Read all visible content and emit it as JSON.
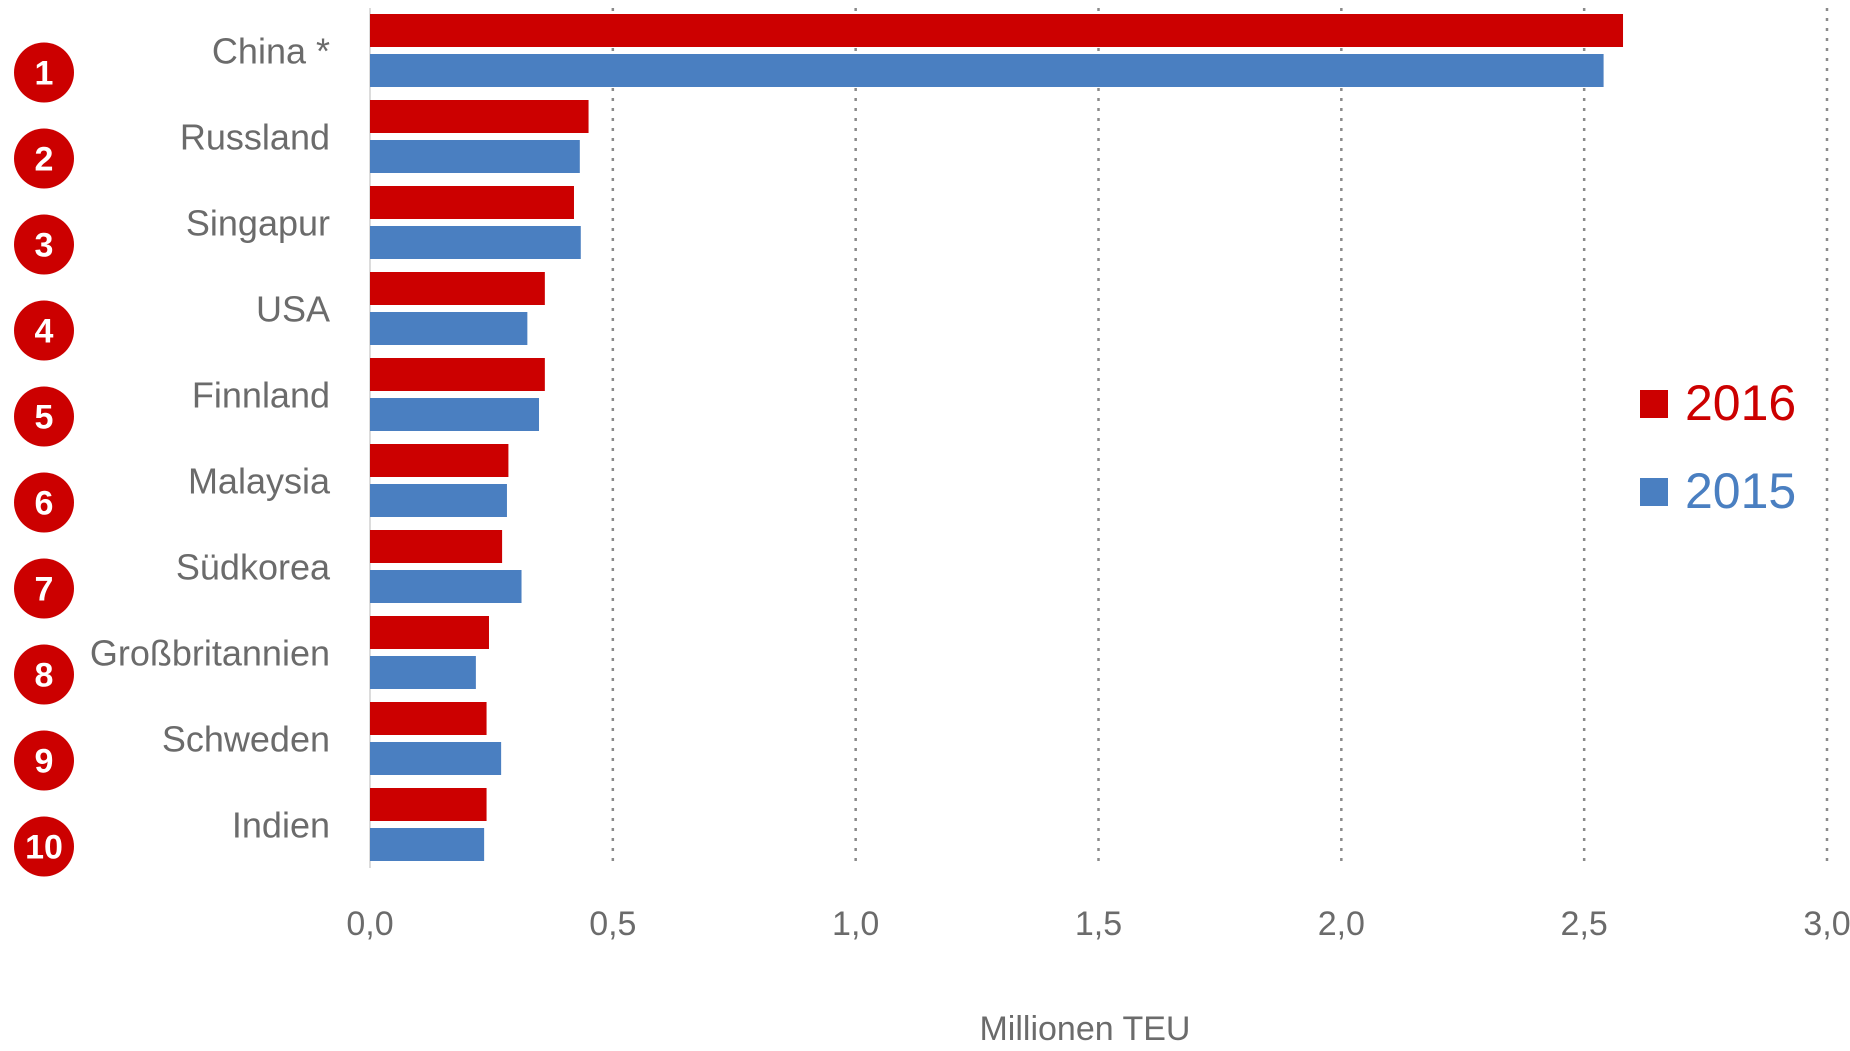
{
  "chart_data": {
    "type": "bar",
    "orientation": "horizontal",
    "categories": [
      "China *",
      "Russland",
      "Singapur",
      "USA",
      "Finnland",
      "Malaysia",
      "Südkorea",
      "Großbritannien",
      "Schweden",
      "Indien"
    ],
    "ranks": [
      "1",
      "2",
      "3",
      "4",
      "5",
      "6",
      "7",
      "8",
      "9",
      "10"
    ],
    "series": [
      {
        "name": "2016",
        "color": "#cc0000",
        "values": [
          2.58,
          0.45,
          0.42,
          0.36,
          0.36,
          0.285,
          0.272,
          0.245,
          0.24,
          0.24
        ]
      },
      {
        "name": "2015",
        "color": "#4a7fc1",
        "values": [
          2.54,
          0.432,
          0.434,
          0.324,
          0.348,
          0.282,
          0.312,
          0.218,
          0.27,
          0.235
        ]
      }
    ],
    "xlabel": "Millionen TEU",
    "xlim": [
      0,
      3.0
    ],
    "xticks": [
      "0,0",
      "0,5",
      "1,0",
      "1,5",
      "2,0",
      "2,5",
      "3,0"
    ],
    "grid": "vertical-dotted",
    "legend_position": "right",
    "rank_badge_color": "#cc0000"
  }
}
